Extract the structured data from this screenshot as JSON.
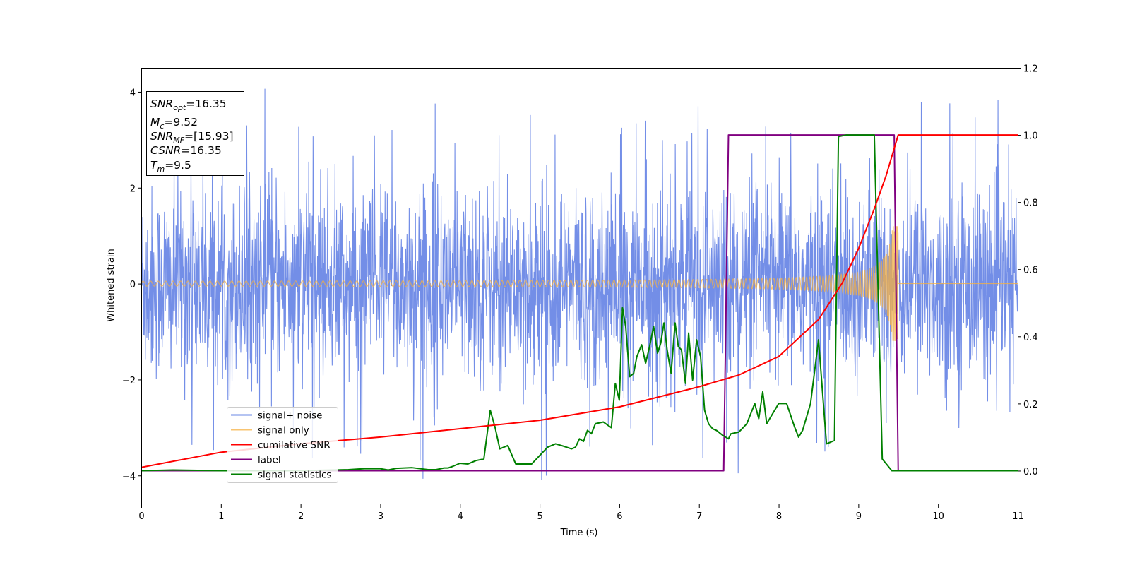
{
  "chart_data": {
    "type": "line",
    "xlabel": "Time (s)",
    "ylabel_left": "Whitened strain",
    "ylabel_right": "",
    "xlim": [
      0,
      11
    ],
    "ylim_left": [
      -4.6,
      4.5
    ],
    "ylim_right": [
      -0.1,
      1.2
    ],
    "x_ticks": [
      0,
      1,
      2,
      3,
      4,
      5,
      6,
      7,
      8,
      9,
      10,
      11
    ],
    "y_left_ticks": [
      -4,
      -2,
      0,
      2,
      4
    ],
    "y_right_ticks": [
      0.0,
      0.2,
      0.4,
      0.6,
      0.8,
      1.0,
      1.2
    ],
    "grid": false,
    "legend_position": "lower-left",
    "annotation": {
      "position": "top-left",
      "lines": [
        {
          "sym": "SNR",
          "sub": "opt",
          "text": "=16.35"
        },
        {
          "sym": "M",
          "sub": "c",
          "text": "=9.52"
        },
        {
          "sym": "SNR",
          "sub": "MF",
          "text": "=[15.93]"
        },
        {
          "sym": "CSNR",
          "sub": "",
          "text": "=16.35"
        },
        {
          "sym": "T",
          "sub": "m",
          "text": "=9.5"
        }
      ]
    },
    "series": [
      {
        "name": "signal+ noise",
        "axis": "left",
        "color": "#6b88e6",
        "description": "whitened strain, Gaussian noise roughly within [-3, 3] with spikes up to about 4.1"
      },
      {
        "name": "signal only",
        "axis": "left",
        "color": "#f5b041",
        "chirp": {
          "t_start": 0,
          "t_merge": 9.5,
          "amp_start": 0.05,
          "amp_peak": 1.2,
          "freq_start_hz": 3,
          "cycles": 160
        }
      },
      {
        "name": "cumilative SNR",
        "axis": "right",
        "color": "#ff0000",
        "x": [
          0,
          1,
          2,
          3,
          4,
          5,
          6,
          7,
          7.5,
          8,
          8.5,
          8.8,
          9.0,
          9.2,
          9.35,
          9.45,
          9.5,
          11
        ],
        "y": [
          0.01,
          0.055,
          0.08,
          0.1,
          0.125,
          0.15,
          0.19,
          0.25,
          0.285,
          0.34,
          0.45,
          0.56,
          0.66,
          0.78,
          0.88,
          0.96,
          1.0,
          1.0
        ]
      },
      {
        "name": "label",
        "axis": "right",
        "color": "#800080",
        "x": [
          0,
          7.31,
          7.37,
          9.45,
          9.5,
          11
        ],
        "y": [
          0,
          0,
          1,
          1,
          0,
          0
        ]
      },
      {
        "name": "signal statistics",
        "axis": "right",
        "color": "#008000",
        "x": [
          0,
          0.4,
          1.0,
          2.0,
          2.6,
          2.8,
          3.0,
          3.1,
          3.2,
          3.4,
          3.6,
          3.7,
          3.8,
          3.85,
          3.9,
          4.0,
          4.1,
          4.2,
          4.3,
          4.38,
          4.44,
          4.5,
          4.6,
          4.7,
          4.8,
          4.9,
          5.0,
          5.1,
          5.2,
          5.3,
          5.4,
          5.45,
          5.5,
          5.55,
          5.6,
          5.65,
          5.7,
          5.8,
          5.9,
          5.95,
          6.0,
          6.04,
          6.08,
          6.13,
          6.18,
          6.22,
          6.28,
          6.33,
          6.38,
          6.43,
          6.48,
          6.52,
          6.56,
          6.6,
          6.65,
          6.7,
          6.74,
          6.78,
          6.83,
          6.87,
          6.92,
          6.97,
          7.02,
          7.07,
          7.12,
          7.17,
          7.22,
          7.3,
          7.37,
          7.4,
          7.5,
          7.6,
          7.7,
          7.75,
          7.8,
          7.85,
          7.9,
          8.0,
          8.1,
          8.2,
          8.25,
          8.3,
          8.4,
          8.5,
          8.6,
          8.7,
          8.75,
          8.85,
          8.9,
          8.95,
          9.0,
          9.1,
          9.2,
          9.3,
          9.42,
          9.45,
          9.5,
          9.55,
          9.6,
          11
        ],
        "y": [
          0,
          0.002,
          0,
          0,
          0.003,
          0.006,
          0.006,
          0.002,
          0.007,
          0.009,
          0.003,
          0.003,
          0.008,
          0.008,
          0.012,
          0.022,
          0.02,
          0.03,
          0.035,
          0.18,
          0.13,
          0.065,
          0.075,
          0.02,
          0.02,
          0.02,
          0.045,
          0.07,
          0.08,
          0.073,
          0.065,
          0.07,
          0.095,
          0.087,
          0.12,
          0.11,
          0.14,
          0.145,
          0.128,
          0.26,
          0.21,
          0.485,
          0.43,
          0.28,
          0.29,
          0.34,
          0.375,
          0.32,
          0.37,
          0.43,
          0.35,
          0.38,
          0.44,
          0.36,
          0.29,
          0.44,
          0.37,
          0.36,
          0.26,
          0.41,
          0.27,
          0.39,
          0.34,
          0.18,
          0.14,
          0.125,
          0.12,
          0.105,
          0.095,
          0.11,
          0.115,
          0.14,
          0.2,
          0.155,
          0.235,
          0.14,
          0.16,
          0.2,
          0.2,
          0.13,
          0.1,
          0.12,
          0.2,
          0.39,
          0.08,
          0.09,
          0.995,
          1.0,
          1.0,
          1.0,
          1.0,
          1.0,
          1.0,
          0.035,
          0.0,
          0.0,
          0.0,
          0.0,
          0.0,
          0.0
        ]
      }
    ]
  }
}
